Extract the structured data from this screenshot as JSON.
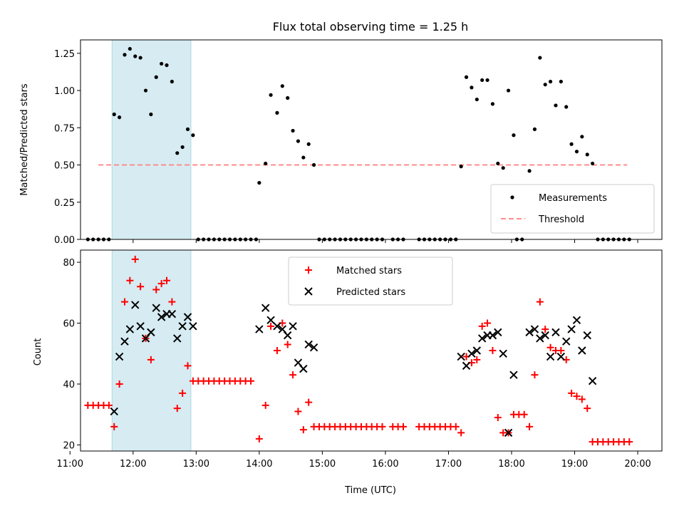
{
  "figure": {
    "title": "Flux total observing time = 1.25 h"
  },
  "chart_data": [
    {
      "type": "scatter",
      "ylabel": "Matched/Predicted stars",
      "xlim": [
        "11:10",
        "20:23"
      ],
      "ylim": [
        0,
        1.34
      ],
      "yticks": [
        "0.00",
        "0.25",
        "0.50",
        "0.75",
        "1.00",
        "1.25"
      ],
      "highlight_span": [
        "11:40",
        "12:55"
      ],
      "threshold": {
        "name": "Threshold",
        "y": 0.5,
        "x_range": [
          "11:27",
          "19:50"
        ],
        "color": "#ff7f7f"
      },
      "legend": {
        "position": "lower-right",
        "entries": [
          "Measurements",
          "Threshold"
        ]
      },
      "series": [
        {
          "name": "Measurements",
          "color": "#000000",
          "points": [
            [
              "11:17",
              0
            ],
            [
              "11:22",
              0
            ],
            [
              "11:27",
              0
            ],
            [
              "11:32",
              0
            ],
            [
              "11:37",
              0
            ],
            [
              "11:42",
              0.84
            ],
            [
              "11:47",
              0.82
            ],
            [
              "11:52",
              1.24
            ],
            [
              "11:57",
              1.28
            ],
            [
              "12:02",
              1.23
            ],
            [
              "12:07",
              1.22
            ],
            [
              "12:12",
              1.0
            ],
            [
              "12:17",
              0.84
            ],
            [
              "12:22",
              1.09
            ],
            [
              "12:27",
              1.18
            ],
            [
              "12:32",
              1.17
            ],
            [
              "12:37",
              1.06
            ],
            [
              "12:42",
              0.58
            ],
            [
              "12:47",
              0.62
            ],
            [
              "12:52",
              0.74
            ],
            [
              "12:57",
              0.7
            ],
            [
              "13:02",
              0
            ],
            [
              "13:07",
              0
            ],
            [
              "13:12",
              0
            ],
            [
              "13:17",
              0
            ],
            [
              "13:22",
              0
            ],
            [
              "13:27",
              0
            ],
            [
              "13:32",
              0
            ],
            [
              "13:37",
              0
            ],
            [
              "13:42",
              0
            ],
            [
              "13:47",
              0
            ],
            [
              "13:52",
              0
            ],
            [
              "13:57",
              0
            ],
            [
              "14:00",
              0.38
            ],
            [
              "14:06",
              0.51
            ],
            [
              "14:11",
              0.97
            ],
            [
              "14:17",
              0.85
            ],
            [
              "14:22",
              1.03
            ],
            [
              "14:27",
              0.95
            ],
            [
              "14:32",
              0.73
            ],
            [
              "14:37",
              0.66
            ],
            [
              "14:42",
              0.55
            ],
            [
              "14:47",
              0.64
            ],
            [
              "14:52",
              0.5
            ],
            [
              "14:57",
              0
            ],
            [
              "15:02",
              0
            ],
            [
              "15:07",
              0
            ],
            [
              "15:12",
              0
            ],
            [
              "15:17",
              0
            ],
            [
              "15:22",
              0
            ],
            [
              "15:27",
              0
            ],
            [
              "15:32",
              0
            ],
            [
              "15:37",
              0
            ],
            [
              "15:42",
              0
            ],
            [
              "15:47",
              0
            ],
            [
              "15:52",
              0
            ],
            [
              "15:57",
              0
            ],
            [
              "16:07",
              0
            ],
            [
              "16:12",
              0
            ],
            [
              "16:17",
              0
            ],
            [
              "16:32",
              0
            ],
            [
              "16:37",
              0
            ],
            [
              "16:42",
              0
            ],
            [
              "16:47",
              0
            ],
            [
              "16:52",
              0
            ],
            [
              "16:57",
              0
            ],
            [
              "17:02",
              0
            ],
            [
              "17:07",
              0
            ],
            [
              "17:12",
              0.49
            ],
            [
              "17:17",
              1.09
            ],
            [
              "17:22",
              1.02
            ],
            [
              "17:27",
              0.94
            ],
            [
              "17:32",
              1.07
            ],
            [
              "17:37",
              1.07
            ],
            [
              "17:42",
              0.91
            ],
            [
              "17:47",
              0.51
            ],
            [
              "17:52",
              0.48
            ],
            [
              "17:57",
              1.0
            ],
            [
              "18:02",
              0.7
            ],
            [
              "18:05",
              0
            ],
            [
              "18:10",
              0
            ],
            [
              "18:17",
              0.46
            ],
            [
              "18:22",
              0.74
            ],
            [
              "18:27",
              1.22
            ],
            [
              "18:32",
              1.04
            ],
            [
              "18:37",
              1.06
            ],
            [
              "18:42",
              0.9
            ],
            [
              "18:47",
              1.06
            ],
            [
              "18:52",
              0.89
            ],
            [
              "18:57",
              0.64
            ],
            [
              "19:02",
              0.59
            ],
            [
              "19:07",
              0.69
            ],
            [
              "19:12",
              0.57
            ],
            [
              "19:17",
              0.51
            ],
            [
              "19:22",
              0
            ],
            [
              "19:27",
              0
            ],
            [
              "19:32",
              0
            ],
            [
              "19:37",
              0
            ],
            [
              "19:42",
              0
            ],
            [
              "19:47",
              0
            ],
            [
              "19:52",
              0
            ]
          ]
        }
      ]
    },
    {
      "type": "scatter",
      "xlabel": "Time (UTC)",
      "ylabel": "Count",
      "xlim": [
        "11:10",
        "20:23"
      ],
      "ylim": [
        18,
        84
      ],
      "yticks": [
        "20",
        "40",
        "60",
        "80"
      ],
      "xticks": [
        "11:00",
        "12:00",
        "13:00",
        "14:00",
        "15:00",
        "16:00",
        "17:00",
        "18:00",
        "19:00",
        "20:00"
      ],
      "highlight_span": [
        "11:40",
        "12:55"
      ],
      "legend": {
        "position": "upper-center",
        "entries": [
          "Matched stars",
          "Predicted stars"
        ]
      },
      "series": [
        {
          "name": "Matched stars",
          "marker": "plus",
          "color": "#ff0000",
          "points": [
            [
              "11:17",
              33
            ],
            [
              "11:22",
              33
            ],
            [
              "11:27",
              33
            ],
            [
              "11:32",
              33
            ],
            [
              "11:37",
              33
            ],
            [
              "11:42",
              26
            ],
            [
              "11:47",
              40
            ],
            [
              "11:52",
              67
            ],
            [
              "11:57",
              74
            ],
            [
              "12:02",
              81
            ],
            [
              "12:07",
              72
            ],
            [
              "12:12",
              55
            ],
            [
              "12:17",
              48
            ],
            [
              "12:22",
              71
            ],
            [
              "12:27",
              73
            ],
            [
              "12:32",
              74
            ],
            [
              "12:37",
              67
            ],
            [
              "12:42",
              32
            ],
            [
              "12:47",
              37
            ],
            [
              "12:52",
              46
            ],
            [
              "12:57",
              41
            ],
            [
              "13:02",
              41
            ],
            [
              "13:07",
              41
            ],
            [
              "13:12",
              41
            ],
            [
              "13:17",
              41
            ],
            [
              "13:22",
              41
            ],
            [
              "13:27",
              41
            ],
            [
              "13:32",
              41
            ],
            [
              "13:37",
              41
            ],
            [
              "13:42",
              41
            ],
            [
              "13:47",
              41
            ],
            [
              "13:52",
              41
            ],
            [
              "14:00",
              22
            ],
            [
              "14:06",
              33
            ],
            [
              "14:11",
              59
            ],
            [
              "14:17",
              51
            ],
            [
              "14:22",
              60
            ],
            [
              "14:27",
              53
            ],
            [
              "14:32",
              43
            ],
            [
              "14:37",
              31
            ],
            [
              "14:42",
              25
            ],
            [
              "14:47",
              34
            ],
            [
              "14:52",
              26
            ],
            [
              "14:57",
              26
            ],
            [
              "15:02",
              26
            ],
            [
              "15:07",
              26
            ],
            [
              "15:12",
              26
            ],
            [
              "15:17",
              26
            ],
            [
              "15:22",
              26
            ],
            [
              "15:27",
              26
            ],
            [
              "15:32",
              26
            ],
            [
              "15:37",
              26
            ],
            [
              "15:42",
              26
            ],
            [
              "15:47",
              26
            ],
            [
              "15:52",
              26
            ],
            [
              "15:57",
              26
            ],
            [
              "16:07",
              26
            ],
            [
              "16:12",
              26
            ],
            [
              "16:17",
              26
            ],
            [
              "16:32",
              26
            ],
            [
              "16:37",
              26
            ],
            [
              "16:42",
              26
            ],
            [
              "16:47",
              26
            ],
            [
              "16:52",
              26
            ],
            [
              "16:57",
              26
            ],
            [
              "17:02",
              26
            ],
            [
              "17:07",
              26
            ],
            [
              "17:12",
              24
            ],
            [
              "17:17",
              49
            ],
            [
              "17:22",
              47
            ],
            [
              "17:27",
              48
            ],
            [
              "17:32",
              59
            ],
            [
              "17:37",
              60
            ],
            [
              "17:42",
              51
            ],
            [
              "17:47",
              29
            ],
            [
              "17:52",
              24
            ],
            [
              "17:57",
              24
            ],
            [
              "18:02",
              30
            ],
            [
              "18:07",
              30
            ],
            [
              "18:12",
              30
            ],
            [
              "18:17",
              26
            ],
            [
              "18:22",
              43
            ],
            [
              "18:27",
              67
            ],
            [
              "18:32",
              58
            ],
            [
              "18:37",
              52
            ],
            [
              "18:42",
              51
            ],
            [
              "18:47",
              51
            ],
            [
              "18:52",
              48
            ],
            [
              "18:57",
              37
            ],
            [
              "19:02",
              36
            ],
            [
              "19:07",
              35
            ],
            [
              "19:12",
              32
            ],
            [
              "19:17",
              21
            ],
            [
              "19:22",
              21
            ],
            [
              "19:27",
              21
            ],
            [
              "19:32",
              21
            ],
            [
              "19:37",
              21
            ],
            [
              "19:42",
              21
            ],
            [
              "19:47",
              21
            ],
            [
              "19:52",
              21
            ]
          ]
        },
        {
          "name": "Predicted stars",
          "marker": "x",
          "color": "#000000",
          "points": [
            [
              "11:42",
              31
            ],
            [
              "11:47",
              49
            ],
            [
              "11:52",
              54
            ],
            [
              "11:57",
              58
            ],
            [
              "12:02",
              66
            ],
            [
              "12:07",
              59
            ],
            [
              "12:12",
              55
            ],
            [
              "12:17",
              57
            ],
            [
              "12:22",
              65
            ],
            [
              "12:27",
              62
            ],
            [
              "12:32",
              63
            ],
            [
              "12:37",
              63
            ],
            [
              "12:42",
              55
            ],
            [
              "12:47",
              59
            ],
            [
              "12:52",
              62
            ],
            [
              "12:57",
              59
            ],
            [
              "14:00",
              58
            ],
            [
              "14:06",
              65
            ],
            [
              "14:11",
              61
            ],
            [
              "14:17",
              59
            ],
            [
              "14:22",
              58
            ],
            [
              "14:27",
              56
            ],
            [
              "14:32",
              59
            ],
            [
              "14:37",
              47
            ],
            [
              "14:42",
              45
            ],
            [
              "14:47",
              53
            ],
            [
              "14:52",
              52
            ],
            [
              "17:12",
              49
            ],
            [
              "17:17",
              46
            ],
            [
              "17:22",
              50
            ],
            [
              "17:27",
              51
            ],
            [
              "17:32",
              55
            ],
            [
              "17:37",
              56
            ],
            [
              "17:42",
              56
            ],
            [
              "17:47",
              57
            ],
            [
              "17:52",
              50
            ],
            [
              "17:57",
              24
            ],
            [
              "18:02",
              43
            ],
            [
              "18:17",
              57
            ],
            [
              "18:22",
              58
            ],
            [
              "18:27",
              55
            ],
            [
              "18:32",
              56
            ],
            [
              "18:37",
              49
            ],
            [
              "18:42",
              57
            ],
            [
              "18:47",
              49
            ],
            [
              "18:52",
              54
            ],
            [
              "18:57",
              58
            ],
            [
              "19:02",
              61
            ],
            [
              "19:07",
              51
            ],
            [
              "19:12",
              56
            ],
            [
              "19:17",
              41
            ]
          ]
        }
      ]
    }
  ]
}
